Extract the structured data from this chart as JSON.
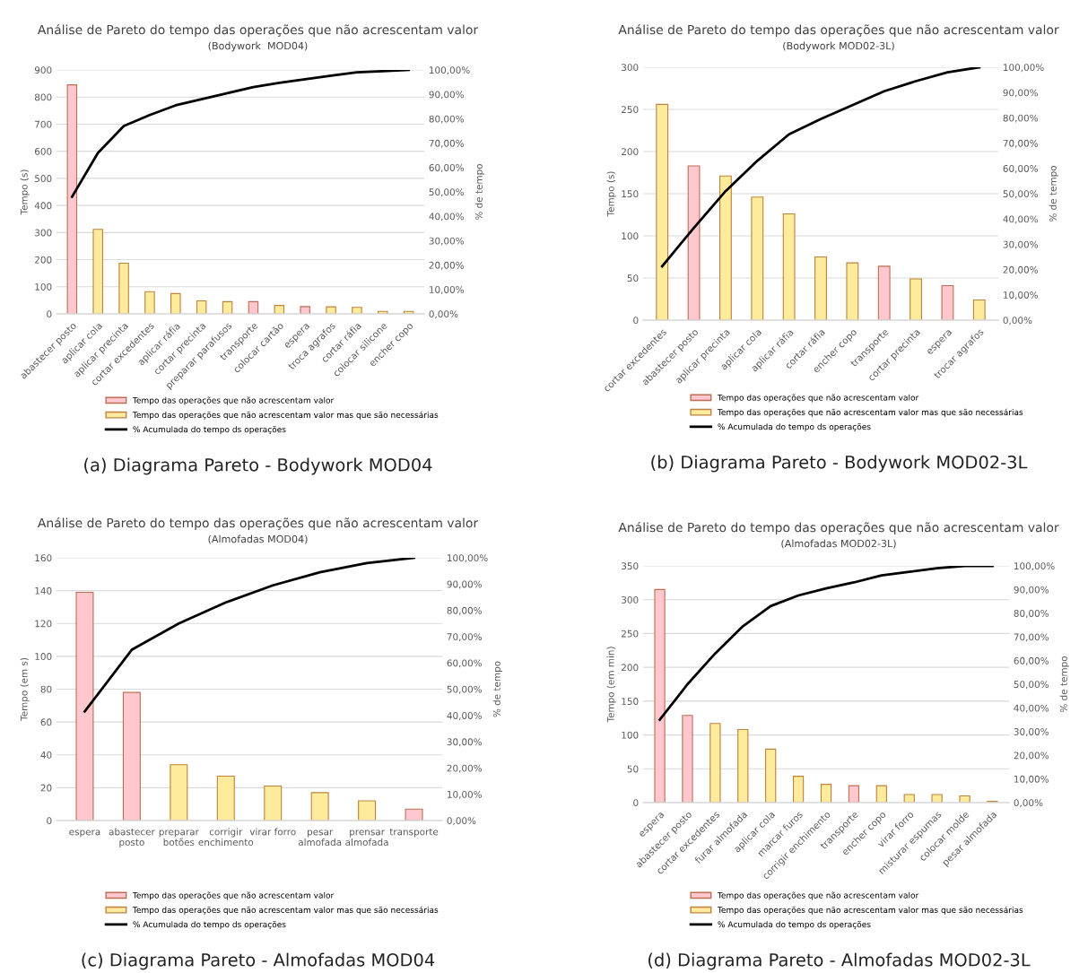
{
  "chart_data": [
    {
      "type": "bar",
      "title": "Análise de Pareto do tempo das operações que não acrescentam valor",
      "subtitle": "(Bodywork  MOD04)",
      "ylabel": "Tempo (s)",
      "y2label": "% de tempo",
      "categories": [
        "abastecer posto",
        "aplicar cola",
        "aplicar precinta",
        "cortar excedentes",
        "aplicar ráfia",
        "cortar precinta",
        "preparar parafusos",
        "transporte",
        "colocar cartão",
        "espera",
        "troca agrafos",
        "cortar ráfia",
        "colocar silicone",
        "encher copo"
      ],
      "series": [
        {
          "name": "Tempo das operações que não acrescentam valor",
          "color": "#ffc7ce",
          "values": [
            845,
            null,
            null,
            null,
            null,
            null,
            null,
            45,
            null,
            27,
            null,
            null,
            null,
            null
          ]
        },
        {
          "name": "Tempo das operações que não acrescentam valor mas que são necessárias",
          "color": "#ffeb9c",
          "values": [
            null,
            312,
            187,
            82,
            75,
            48,
            45,
            null,
            31,
            null,
            26,
            24,
            9,
            9
          ]
        },
        {
          "name": "% Acumulada do tempo ds operações",
          "type": "line",
          "axis": "y2",
          "color": "#000000",
          "values": [
            48,
            66,
            77,
            81.5,
            85.5,
            88,
            90.5,
            93,
            94.7,
            96.2,
            97.7,
            99,
            99.5,
            100
          ]
        }
      ],
      "ylim": [
        0,
        900
      ],
      "yticks": [
        0,
        100,
        200,
        300,
        400,
        500,
        600,
        700,
        800,
        900
      ],
      "y2lim": [
        0,
        100
      ],
      "y2ticks": [
        {
          "value": 0,
          "label": "0,00%"
        },
        {
          "value": 10,
          "label": "10,00%"
        },
        {
          "value": 20,
          "label": "20,00%"
        },
        {
          "value": 30,
          "label": "30,00%"
        },
        {
          "value": 40,
          "label": "40,00%"
        },
        {
          "value": 50,
          "label": "50,00%"
        },
        {
          "value": 60,
          "label": "60,00%"
        },
        {
          "value": 70,
          "label": "70,00%"
        },
        {
          "value": 80,
          "label": "80,00%"
        },
        {
          "value": 90,
          "label": "90,00%"
        },
        {
          "value": 100,
          "label": "100,00%"
        }
      ],
      "grid": "y",
      "legend": "bottom",
      "annotations": [
        "(a) Diagrama Pareto - Bodywork MOD04"
      ]
    },
    {
      "type": "bar",
      "title": "Análise de Pareto do tempo das operações que não acrescentam valor",
      "subtitle": "(Bodywork MOD02-3L)",
      "ylabel": "Tempo (s)",
      "y2label": "% de tempo",
      "categories": [
        "cortar excedentes",
        "abastecer posto",
        "aplicar precinta",
        "aplicar cola",
        "aplicar ráfia",
        "cortar ráfia",
        "encher copo",
        "transporte",
        "cortar precinta",
        "espera",
        "trocar agrafos"
      ],
      "series": [
        {
          "name": "Tempo das operações que não acrescentam valor",
          "color": "#ffc7ce",
          "values": [
            null,
            183,
            null,
            null,
            null,
            null,
            null,
            64,
            null,
            41,
            null
          ]
        },
        {
          "name": "Tempo das operações que não acrescentam valor mas que são necessárias",
          "color": "#ffeb9c",
          "values": [
            256,
            null,
            171,
            146,
            126,
            75,
            68,
            null,
            49,
            null,
            24
          ]
        },
        {
          "name": "% Acumulada do tempo ds operações",
          "type": "line",
          "axis": "y2",
          "color": "#000000",
          "values": [
            21.3,
            36.5,
            51,
            63,
            73.5,
            79.5,
            85,
            90.5,
            94.5,
            98,
            100
          ]
        }
      ],
      "ylim": [
        0,
        300
      ],
      "yticks": [
        0,
        50,
        100,
        150,
        200,
        250,
        300
      ],
      "y2lim": [
        0,
        100
      ],
      "y2ticks": [
        {
          "value": 0,
          "label": "0,00%"
        },
        {
          "value": 10,
          "label": "10,00%"
        },
        {
          "value": 20,
          "label": "20,00%"
        },
        {
          "value": 30,
          "label": "30,00%"
        },
        {
          "value": 40,
          "label": "40,00%"
        },
        {
          "value": 50,
          "label": "50,00%"
        },
        {
          "value": 60,
          "label": "60,00%"
        },
        {
          "value": 70,
          "label": "70,00%"
        },
        {
          "value": 80,
          "label": "80,00%"
        },
        {
          "value": 90,
          "label": "90,00%"
        },
        {
          "value": 100,
          "label": "100,00%"
        }
      ],
      "grid": "y",
      "legend": "bottom",
      "annotations": [
        "(b) Diagrama Pareto - Bodywork MOD02-3L"
      ]
    },
    {
      "type": "bar",
      "title": "Análise de Pareto do tempo das operações que não acrescentam valor",
      "subtitle": "(Almofadas MOD04)",
      "ylabel": "Tempo (em s)",
      "y2label": "% de tempo",
      "categories": [
        "espera",
        "abastecer\nposto",
        "preparar\nbotões",
        "corrigir\nenchimento",
        "virar forro",
        "pesar\nalmofada",
        "prensar\nalmofada",
        "transporte"
      ],
      "series": [
        {
          "name": "Tempo das operações que não acrescentam valor",
          "color": "#ffc7ce",
          "values": [
            139,
            78,
            null,
            null,
            null,
            null,
            null,
            7
          ]
        },
        {
          "name": "Tempo das operações que não acrescentam valor mas que são necessárias",
          "color": "#ffeb9c",
          "values": [
            null,
            null,
            34,
            27,
            21,
            17,
            12,
            null
          ]
        },
        {
          "name": "% Acumulada do tempo ds operações",
          "type": "line",
          "axis": "y2",
          "color": "#000000",
          "values": [
            41.5,
            65,
            75,
            83,
            89.5,
            94.5,
            98,
            100
          ]
        }
      ],
      "ylim": [
        0,
        160
      ],
      "yticks": [
        0,
        20,
        40,
        60,
        80,
        100,
        120,
        140,
        160
      ],
      "y2lim": [
        0,
        100
      ],
      "y2ticks": [
        {
          "value": 0,
          "label": "0,00%"
        },
        {
          "value": 10,
          "label": "10,00%"
        },
        {
          "value": 20,
          "label": "20,00%"
        },
        {
          "value": 30,
          "label": "30,00%"
        },
        {
          "value": 40,
          "label": "40,00%"
        },
        {
          "value": 50,
          "label": "50,00%"
        },
        {
          "value": 60,
          "label": "60,00%"
        },
        {
          "value": 70,
          "label": "70,00%"
        },
        {
          "value": 80,
          "label": "80,00%"
        },
        {
          "value": 90,
          "label": "90,00%"
        },
        {
          "value": 100,
          "label": "100,00%"
        }
      ],
      "grid": "y",
      "legend": "bottom",
      "annotations": [
        "(c) Diagrama Pareto - Almofadas MOD04"
      ]
    },
    {
      "type": "bar",
      "title": "Análise de Pareto do tempo das operações que não acrescentam valor",
      "subtitle": "(Almofadas MOD02-3L)",
      "ylabel": "Tempo (em min)",
      "y2label": "% de tempo",
      "categories": [
        "espera",
        "abastecer posto",
        "cortar excedentes",
        "furar almofada",
        "aplicar cola",
        "marcar furos",
        "corrigir enchimento",
        "transporte",
        "encher copo",
        "virar forro",
        "misturar espumas",
        "colocar molde",
        "pesar almofada"
      ],
      "series": [
        {
          "name": "Tempo das operações que não acrescentam valor",
          "color": "#ffc7ce",
          "values": [
            315,
            129,
            null,
            null,
            null,
            null,
            null,
            25,
            null,
            null,
            null,
            null,
            null
          ]
        },
        {
          "name": "Tempo das operações que não acrescentam valor mas que são necessárias",
          "color": "#ffeb9c",
          "values": [
            null,
            null,
            117,
            108,
            79,
            39,
            27,
            null,
            25,
            12,
            12,
            10,
            2
          ]
        },
        {
          "name": "% Acumulada do tempo ds operações",
          "type": "line",
          "axis": "y2",
          "color": "#000000",
          "values": [
            35,
            50,
            63,
            74.5,
            83,
            87.5,
            90.5,
            93,
            96,
            97.5,
            99,
            100,
            100
          ]
        }
      ],
      "ylim": [
        0,
        350
      ],
      "yticks": [
        0,
        50,
        100,
        150,
        200,
        250,
        300,
        350
      ],
      "y2lim": [
        0,
        100
      ],
      "y2ticks": [
        {
          "value": 0,
          "label": "0,00%"
        },
        {
          "value": 10,
          "label": "10,00%"
        },
        {
          "value": 20,
          "label": "20,00%"
        },
        {
          "value": 30,
          "label": "30,00%"
        },
        {
          "value": 40,
          "label": "40,00%"
        },
        {
          "value": 50,
          "label": "50,00%"
        },
        {
          "value": 60,
          "label": "60,00%"
        },
        {
          "value": 70,
          "label": "70,00%"
        },
        {
          "value": 80,
          "label": "80,00%"
        },
        {
          "value": 90,
          "label": "90,00%"
        },
        {
          "value": 100,
          "label": "100,00%"
        }
      ],
      "grid": "y",
      "legend": "bottom",
      "annotations": [
        "(d) Diagrama Pareto - Almofadas MOD02-3L"
      ]
    }
  ]
}
